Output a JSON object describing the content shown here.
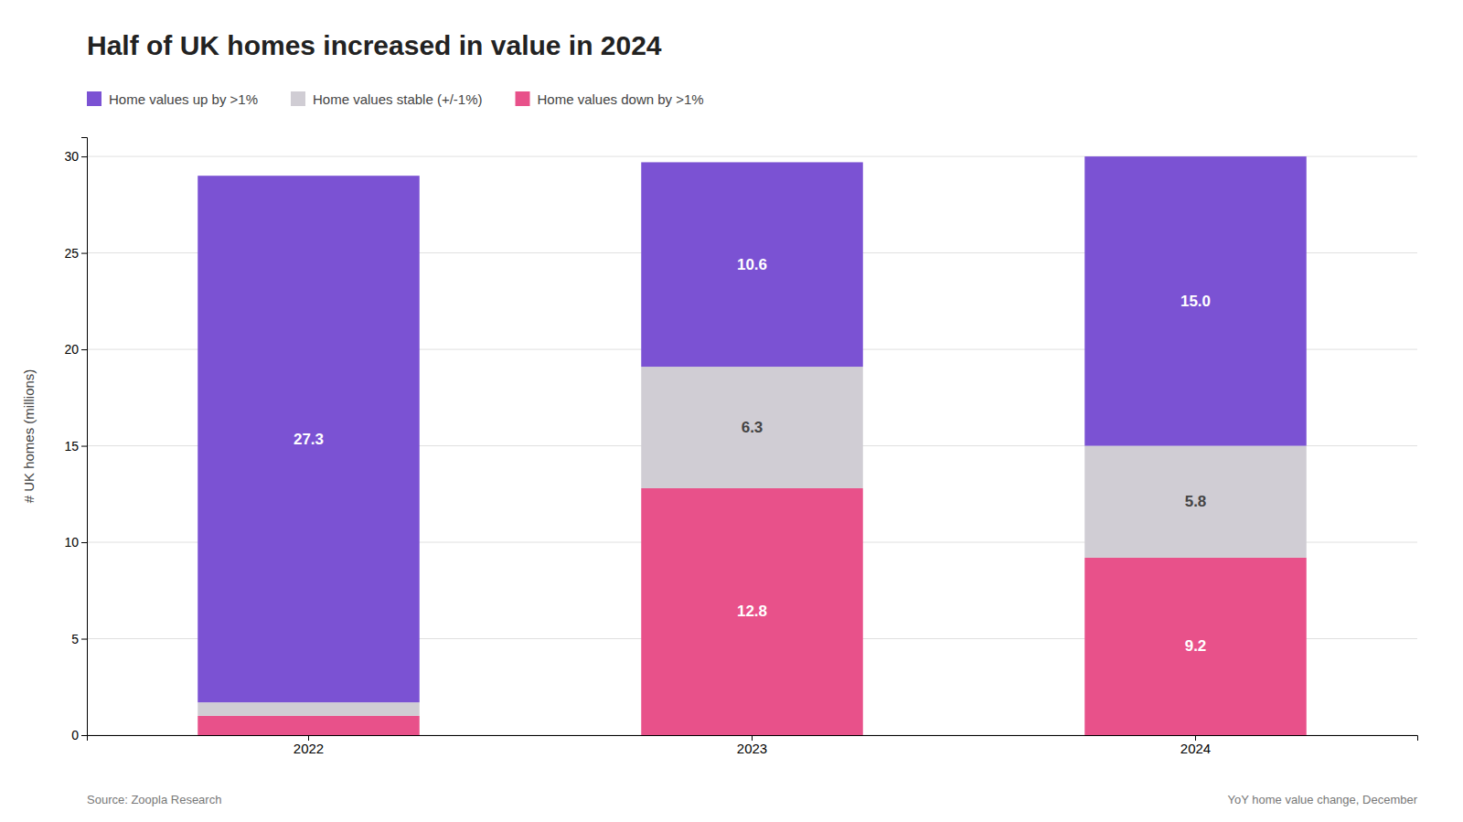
{
  "chart_data": {
    "type": "bar",
    "stacked": true,
    "title": "Half of UK homes increased in value in 2024",
    "ylabel": "# UK homes (millions)",
    "categories": [
      "2022",
      "2023",
      "2024"
    ],
    "series": [
      {
        "name": "Home values down by >1%",
        "color": "#E8518A",
        "values": [
          1.0,
          12.8,
          9.2
        ],
        "value_labels": [
          null,
          "12.8",
          "9.2"
        ]
      },
      {
        "name": "Home values stable (+/-1%)",
        "color": "#D0CDD4",
        "values": [
          0.7,
          6.3,
          5.8
        ],
        "value_labels": [
          null,
          "6.3",
          "5.8"
        ]
      },
      {
        "name": "Home values up by >1%",
        "color": "#7B52D3",
        "values": [
          27.3,
          10.6,
          15.0
        ],
        "value_labels": [
          "27.3",
          "10.6",
          "15.0"
        ]
      }
    ],
    "data_labels": true,
    "ylim": [
      0,
      31
    ],
    "yticks": [
      0,
      5,
      10,
      15,
      20,
      25,
      30
    ],
    "grid": true,
    "legend": "top-left",
    "annotations": [
      "Source: Zoopla Research",
      "YoY home value change, December"
    ]
  }
}
